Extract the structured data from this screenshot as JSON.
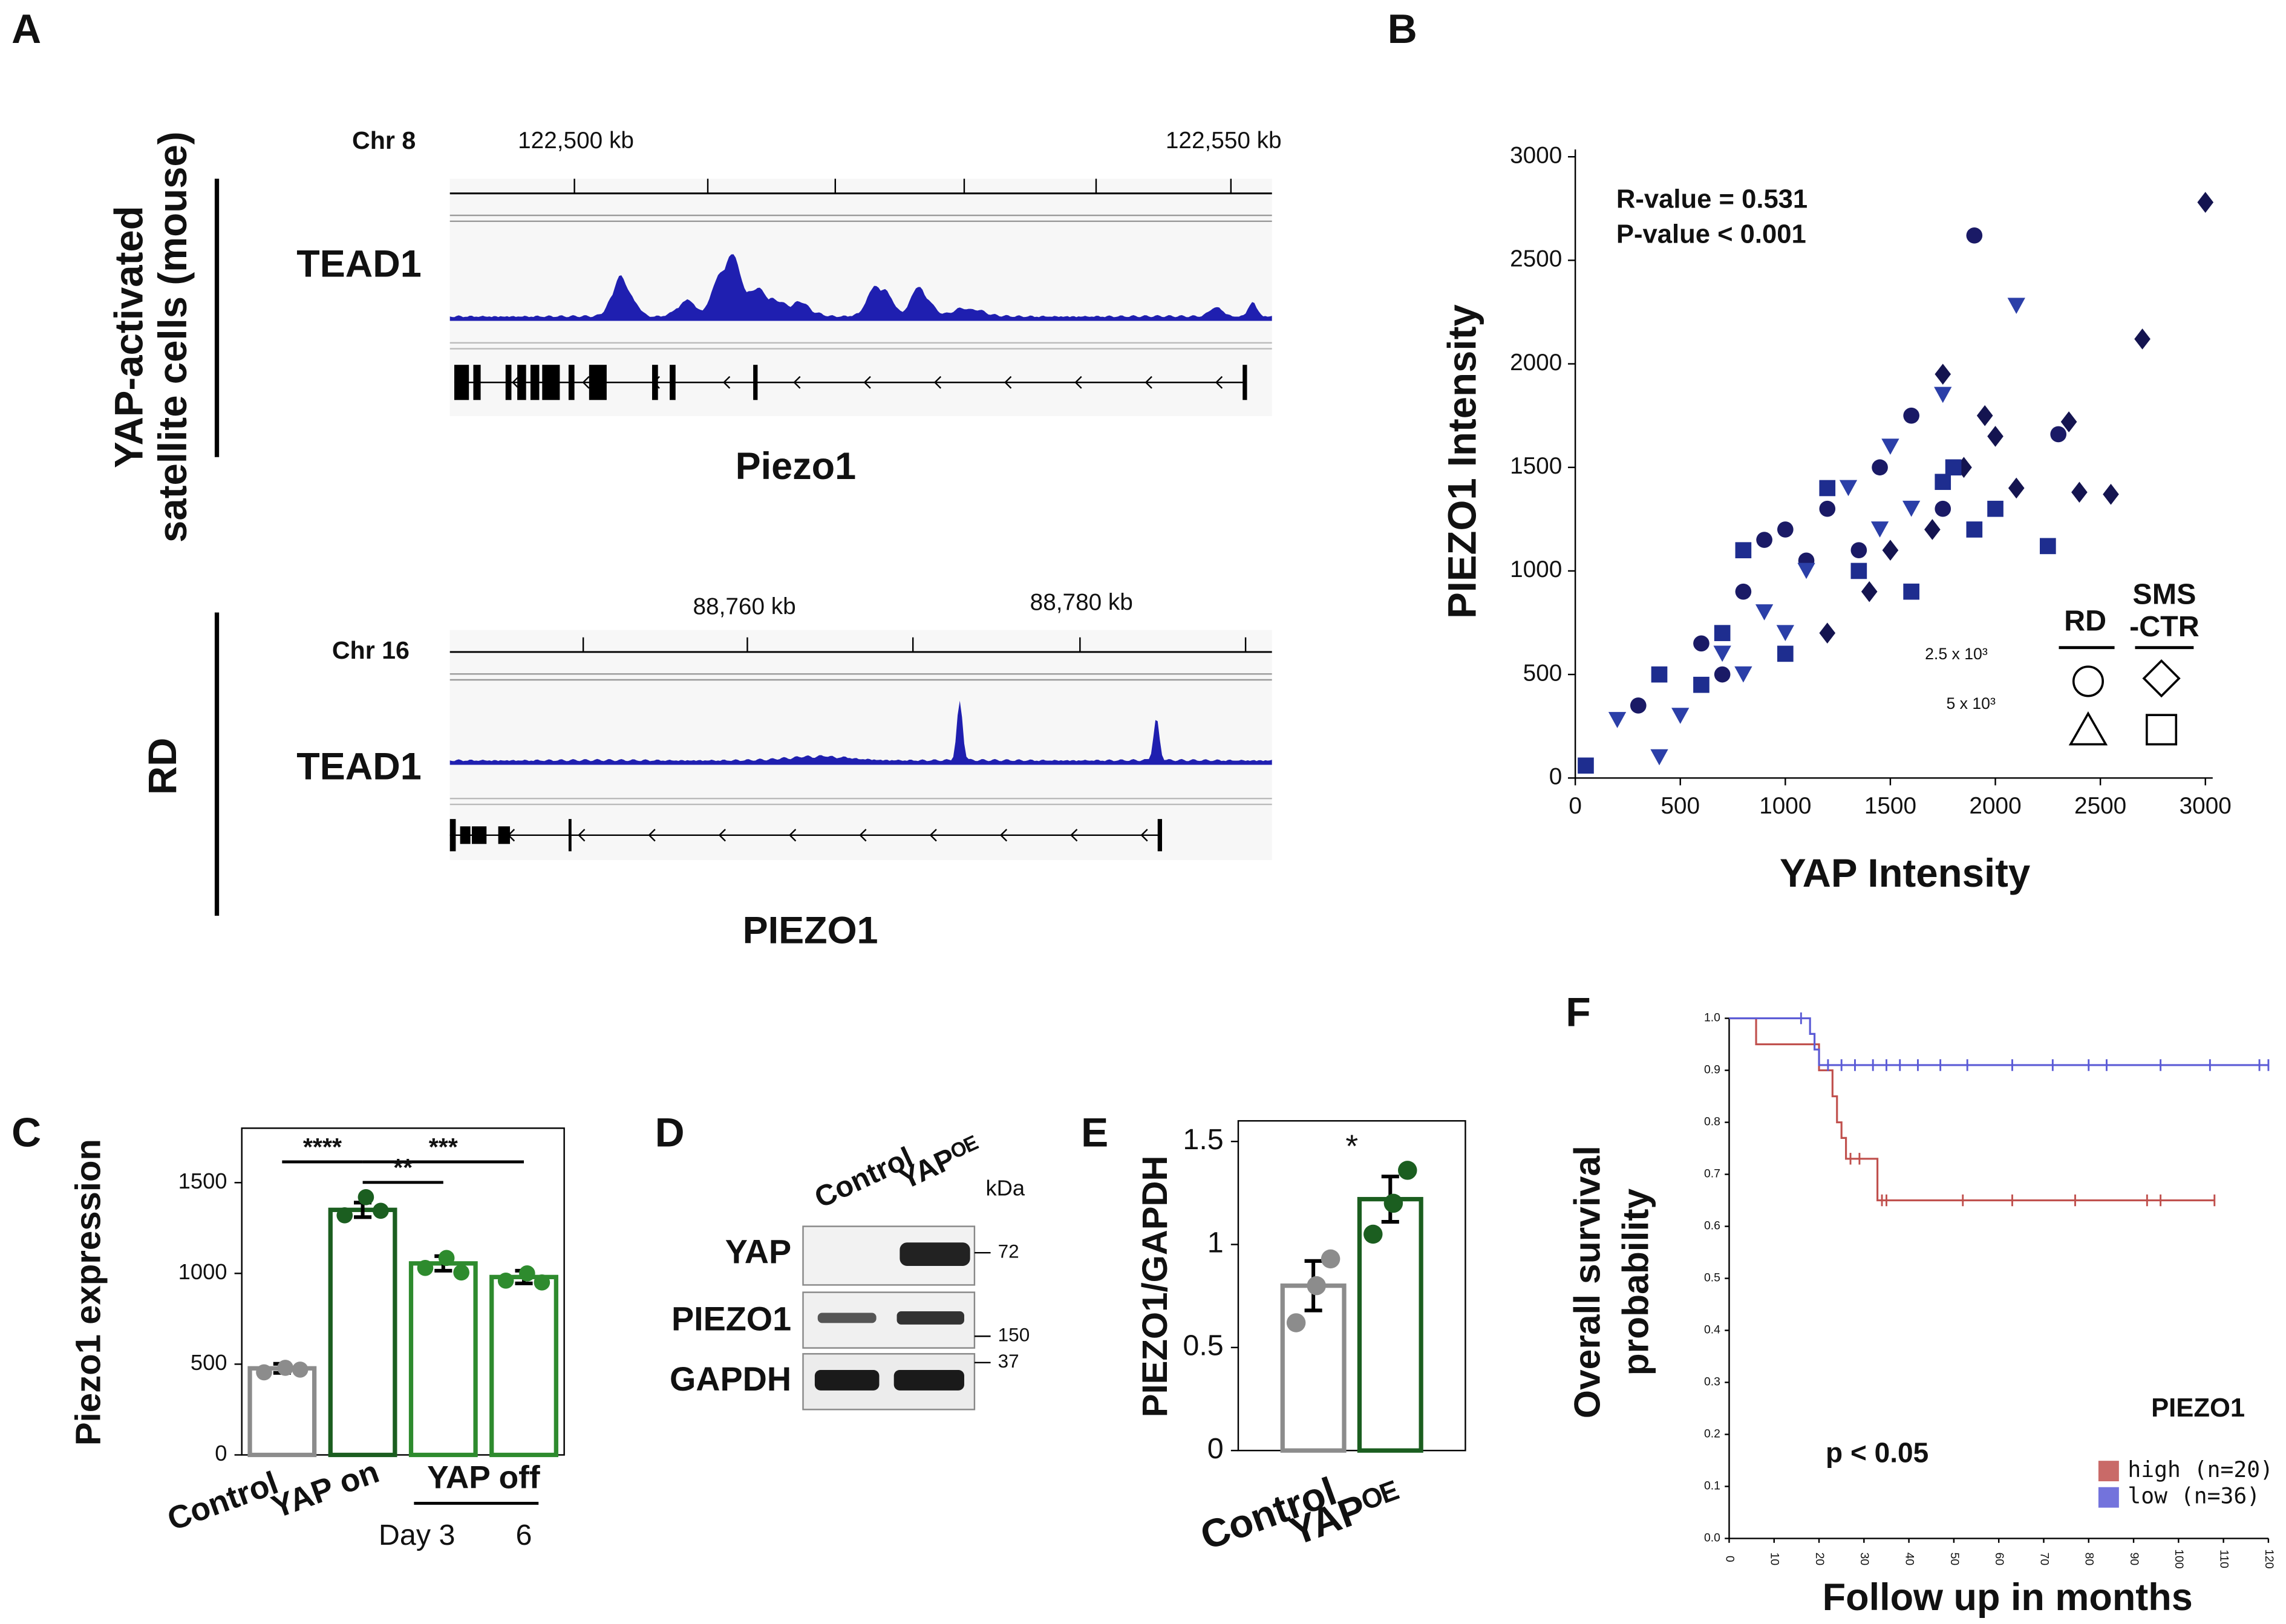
{
  "panel_labels": [
    "A",
    "B",
    "C",
    "D",
    "E",
    "F"
  ],
  "panel_a": {
    "tracks": [
      {
        "chromosome": "Chr 8",
        "coordinates": [
          "122,500 kb",
          "122,550 kb"
        ],
        "signal": "TEAD1",
        "gene": "Piezo1",
        "cells": [
          "YAP-activated",
          "satellite cells (mouse)"
        ]
      },
      {
        "chromosome": "Chr 16",
        "coordinates": [
          "88,760 kb",
          "88,780 kb"
        ],
        "signal": "TEAD1",
        "gene": "PIEZO1",
        "cells": [
          "RD"
        ]
      }
    ]
  },
  "panel_d": {
    "lanes": [
      "Control",
      "YAPᴼᴱ"
    ],
    "unit": "kDa",
    "rows": [
      {
        "protein": "YAP",
        "marker": "72"
      },
      {
        "protein": "PIEZO1",
        "marker": "150"
      },
      {
        "protein": "GAPDH",
        "marker": "37"
      }
    ]
  },
  "chart_data": [
    {
      "type": "scatter",
      "x_label": "YAP Intensity",
      "y_label": "PIEZO1 Intensity",
      "annotations": [
        "R-value = 0.531",
        "P-value < 0.001",
        "2.5 x 10³",
        "5 x 10³"
      ],
      "legend_headers": [
        [
          "RD"
        ],
        [
          "SMS",
          "-CTR"
        ]
      ],
      "xlim": [
        0,
        3000
      ],
      "ylim": [
        0,
        3000
      ],
      "xticks": [
        0,
        500,
        1000,
        1500,
        2000,
        2500,
        3000
      ],
      "yticks": [
        0,
        500,
        1000,
        1500,
        2000,
        2500,
        3000
      ],
      "series": [
        {
          "marker": "circle",
          "color": "#1a1a66",
          "x": [
            1900,
            2300,
            1450,
            1000,
            600,
            300,
            1200,
            800,
            1100,
            1600,
            900,
            1350,
            700,
            1750
          ],
          "values": [
            2620,
            1660,
            1500,
            1200,
            650,
            350,
            1300,
            900,
            1050,
            1750,
            1150,
            1100,
            500,
            1300
          ]
        },
        {
          "marker": "triangle",
          "color": "#2b3fa8",
          "x": [
            2100,
            1750,
            400,
            700,
            900,
            1300,
            1600,
            500,
            1100,
            1500,
            800,
            200,
            1000,
            1450
          ],
          "values": [
            2280,
            1850,
            100,
            600,
            800,
            1400,
            1300,
            300,
            1000,
            1600,
            500,
            280,
            700,
            1200
          ]
        },
        {
          "marker": "diamond",
          "color": "#141450",
          "x": [
            3000,
            2700,
            2350,
            2400,
            2550,
            2000,
            1850,
            1700,
            1200,
            1500,
            2100,
            1750,
            1950,
            1400
          ],
          "values": [
            2780,
            2120,
            1720,
            1380,
            1370,
            1650,
            1500,
            1200,
            700,
            1100,
            1400,
            1950,
            1750,
            900
          ]
        },
        {
          "marker": "square",
          "color": "#1e2d8f",
          "x": [
            50,
            2250,
            1750,
            1800,
            800,
            1600,
            1200,
            700,
            400,
            1900,
            1000,
            1350,
            2000,
            600
          ],
          "values": [
            60,
            1120,
            1430,
            1500,
            1100,
            900,
            1400,
            700,
            500,
            1200,
            600,
            1000,
            1300,
            450
          ]
        }
      ]
    },
    {
      "type": "bar",
      "y_label": "Piezo1 expression",
      "categories": [
        "Control",
        "YAP on",
        "Day 3",
        "6"
      ],
      "group_label": "YAP off",
      "values": [
        477,
        1350,
        1055,
        980
      ],
      "errors": [
        25,
        40,
        40,
        35
      ],
      "points": [
        [
          455,
          480,
          470
        ],
        [
          1320,
          1420,
          1345
        ],
        [
          1030,
          1085,
          1005
        ],
        [
          960,
          1000,
          950
        ]
      ],
      "colors": [
        "#8c8c8c",
        "#1b5e20",
        "#2e8b2e",
        "#2e8b2e"
      ],
      "ylim": [
        0,
        1800
      ],
      "yticks": [
        0,
        500,
        1000,
        1500
      ],
      "significance": [
        "****",
        "***",
        "**"
      ]
    },
    {
      "type": "bar",
      "y_label": "PIEZO1/GAPDH",
      "categories": [
        "Control",
        "YAPᴼᴱ"
      ],
      "values": [
        0.8,
        1.22
      ],
      "errors": [
        0.12,
        0.11
      ],
      "points": [
        [
          0.62,
          0.8,
          0.93
        ],
        [
          1.05,
          1.2,
          1.36
        ]
      ],
      "colors": [
        "#8c8c8c",
        "#1b5e20"
      ],
      "ylim": [
        0,
        1.6
      ],
      "yticks": [
        0,
        0.5,
        1,
        1.5
      ],
      "significance": [
        "*"
      ]
    },
    {
      "type": "line",
      "x_label": "Follow up in months",
      "y_label": [
        "Overall survival",
        "probability"
      ],
      "annotations": [
        "p < 0.05"
      ],
      "legend_title": "PIEZO1",
      "xlim": [
        0,
        120
      ],
      "ylim": [
        0,
        1
      ],
      "xticks": [
        0,
        10,
        20,
        30,
        40,
        50,
        60,
        70,
        80,
        90,
        100,
        110,
        120
      ],
      "yticks": [
        {
          "value": 0,
          "label": "0.0"
        },
        0.1,
        0.2,
        0.3,
        0.4,
        0.5,
        0.6,
        0.7,
        0.8,
        0.9,
        {
          "value": 1,
          "label": "1.0"
        }
      ],
      "series": [
        {
          "name": "high (n=20)",
          "color": "#c0504d",
          "x": [
            0,
            6,
            6,
            20,
            20,
            23,
            23,
            24,
            24,
            25,
            25,
            26,
            26,
            33,
            33,
            108
          ],
          "values": [
            1,
            1,
            0.95,
            0.95,
            0.9,
            0.9,
            0.85,
            0.85,
            0.8,
            0.8,
            0.77,
            0.77,
            0.73,
            0.73,
            0.65,
            0.65
          ],
          "censored": {
            "x": [
              27,
              29,
              34,
              35,
              52,
              63,
              77,
              93,
              96,
              108
            ],
            "values": [
              0.73,
              0.73,
              0.65,
              0.65,
              0.65,
              0.65,
              0.65,
              0.65,
              0.65,
              0.65
            ]
          }
        },
        {
          "name": "low (n=36)",
          "color": "#5b5bd6",
          "x": [
            0,
            18,
            18,
            19,
            19,
            20,
            20,
            120
          ],
          "values": [
            1,
            1,
            0.97,
            0.97,
            0.94,
            0.94,
            0.91,
            0.91
          ],
          "censored": {
            "x": [
              16,
              22,
              25,
              28,
              32,
              35,
              38,
              42,
              47,
              53,
              63,
              72,
              80,
              84,
              96,
              107,
              118,
              120
            ],
            "values": [
              1,
              0.91,
              0.91,
              0.91,
              0.91,
              0.91,
              0.91,
              0.91,
              0.91,
              0.91,
              0.91,
              0.91,
              0.91,
              0.91,
              0.91,
              0.91,
              0.91,
              0.91
            ]
          }
        }
      ]
    }
  ]
}
